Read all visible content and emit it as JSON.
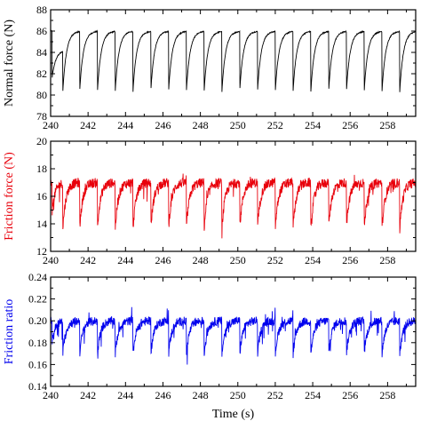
{
  "chart_data": [
    {
      "type": "line",
      "ylabel": "Normal force (N)",
      "xlim": [
        240,
        259.5
      ],
      "ylim": [
        78,
        88
      ],
      "xticks": [
        240,
        242,
        244,
        246,
        248,
        250,
        252,
        254,
        256,
        258
      ],
      "yticks": [
        78,
        80,
        82,
        84,
        86,
        88
      ],
      "color": "#000000",
      "ylabel_color": "#000000",
      "signal": {
        "x_start": 240.0,
        "x_end": 259.5,
        "first_peak": 84.2,
        "plateau": 86.0,
        "trough": 80.3,
        "rise_time_s": 0.35,
        "noise": 0.05,
        "cycle_starts": [
          240.0,
          240.65,
          241.55,
          242.5,
          243.45,
          244.4,
          245.35,
          246.3,
          247.25,
          248.2,
          249.15,
          250.1,
          251.05,
          252.0,
          252.95,
          253.9,
          254.85,
          255.8,
          256.75,
          257.7,
          258.65
        ]
      }
    },
    {
      "type": "line",
      "ylabel": "Friction force (N)",
      "xlim": [
        240,
        259.5
      ],
      "ylim": [
        12,
        20
      ],
      "xticks": [
        240,
        242,
        244,
        246,
        248,
        250,
        252,
        254,
        256,
        258
      ],
      "yticks": [
        12,
        14,
        16,
        18,
        20
      ],
      "color": "#e8000b",
      "ylabel_color": "#e8000b",
      "signal": {
        "x_start": 240.0,
        "x_end": 259.5,
        "first_peak": 17.0,
        "plateau": 17.0,
        "trough": 13.6,
        "rise_time_s": 0.3,
        "noise": 0.35,
        "cycle_starts": [
          240.0,
          240.65,
          241.55,
          242.5,
          243.45,
          244.4,
          245.35,
          246.3,
          247.25,
          248.2,
          249.15,
          250.1,
          251.05,
          252.0,
          252.95,
          253.9,
          254.85,
          255.8,
          256.75,
          257.7,
          258.65
        ]
      }
    },
    {
      "type": "line",
      "ylabel": "Friction ratio",
      "xlabel": "Time (s)",
      "xlim": [
        240,
        259.5
      ],
      "ylim": [
        0.14,
        0.24
      ],
      "xticks": [
        240,
        242,
        244,
        246,
        248,
        250,
        252,
        254,
        256,
        258
      ],
      "yticks": [
        0.14,
        0.16,
        0.18,
        0.2,
        0.22,
        0.24
      ],
      "color": "#0000ee",
      "ylabel_color": "#0000ee",
      "signal": {
        "x_start": 240.0,
        "x_end": 259.5,
        "first_peak": 0.2,
        "plateau": 0.2,
        "trough": 0.169,
        "rise_time_s": 0.3,
        "noise": 0.004,
        "cycle_starts": [
          240.0,
          240.65,
          241.55,
          242.5,
          243.45,
          244.4,
          245.35,
          246.3,
          247.25,
          248.2,
          249.15,
          250.1,
          251.05,
          252.0,
          252.95,
          253.9,
          254.85,
          255.8,
          256.75,
          257.7,
          258.65
        ]
      }
    }
  ]
}
